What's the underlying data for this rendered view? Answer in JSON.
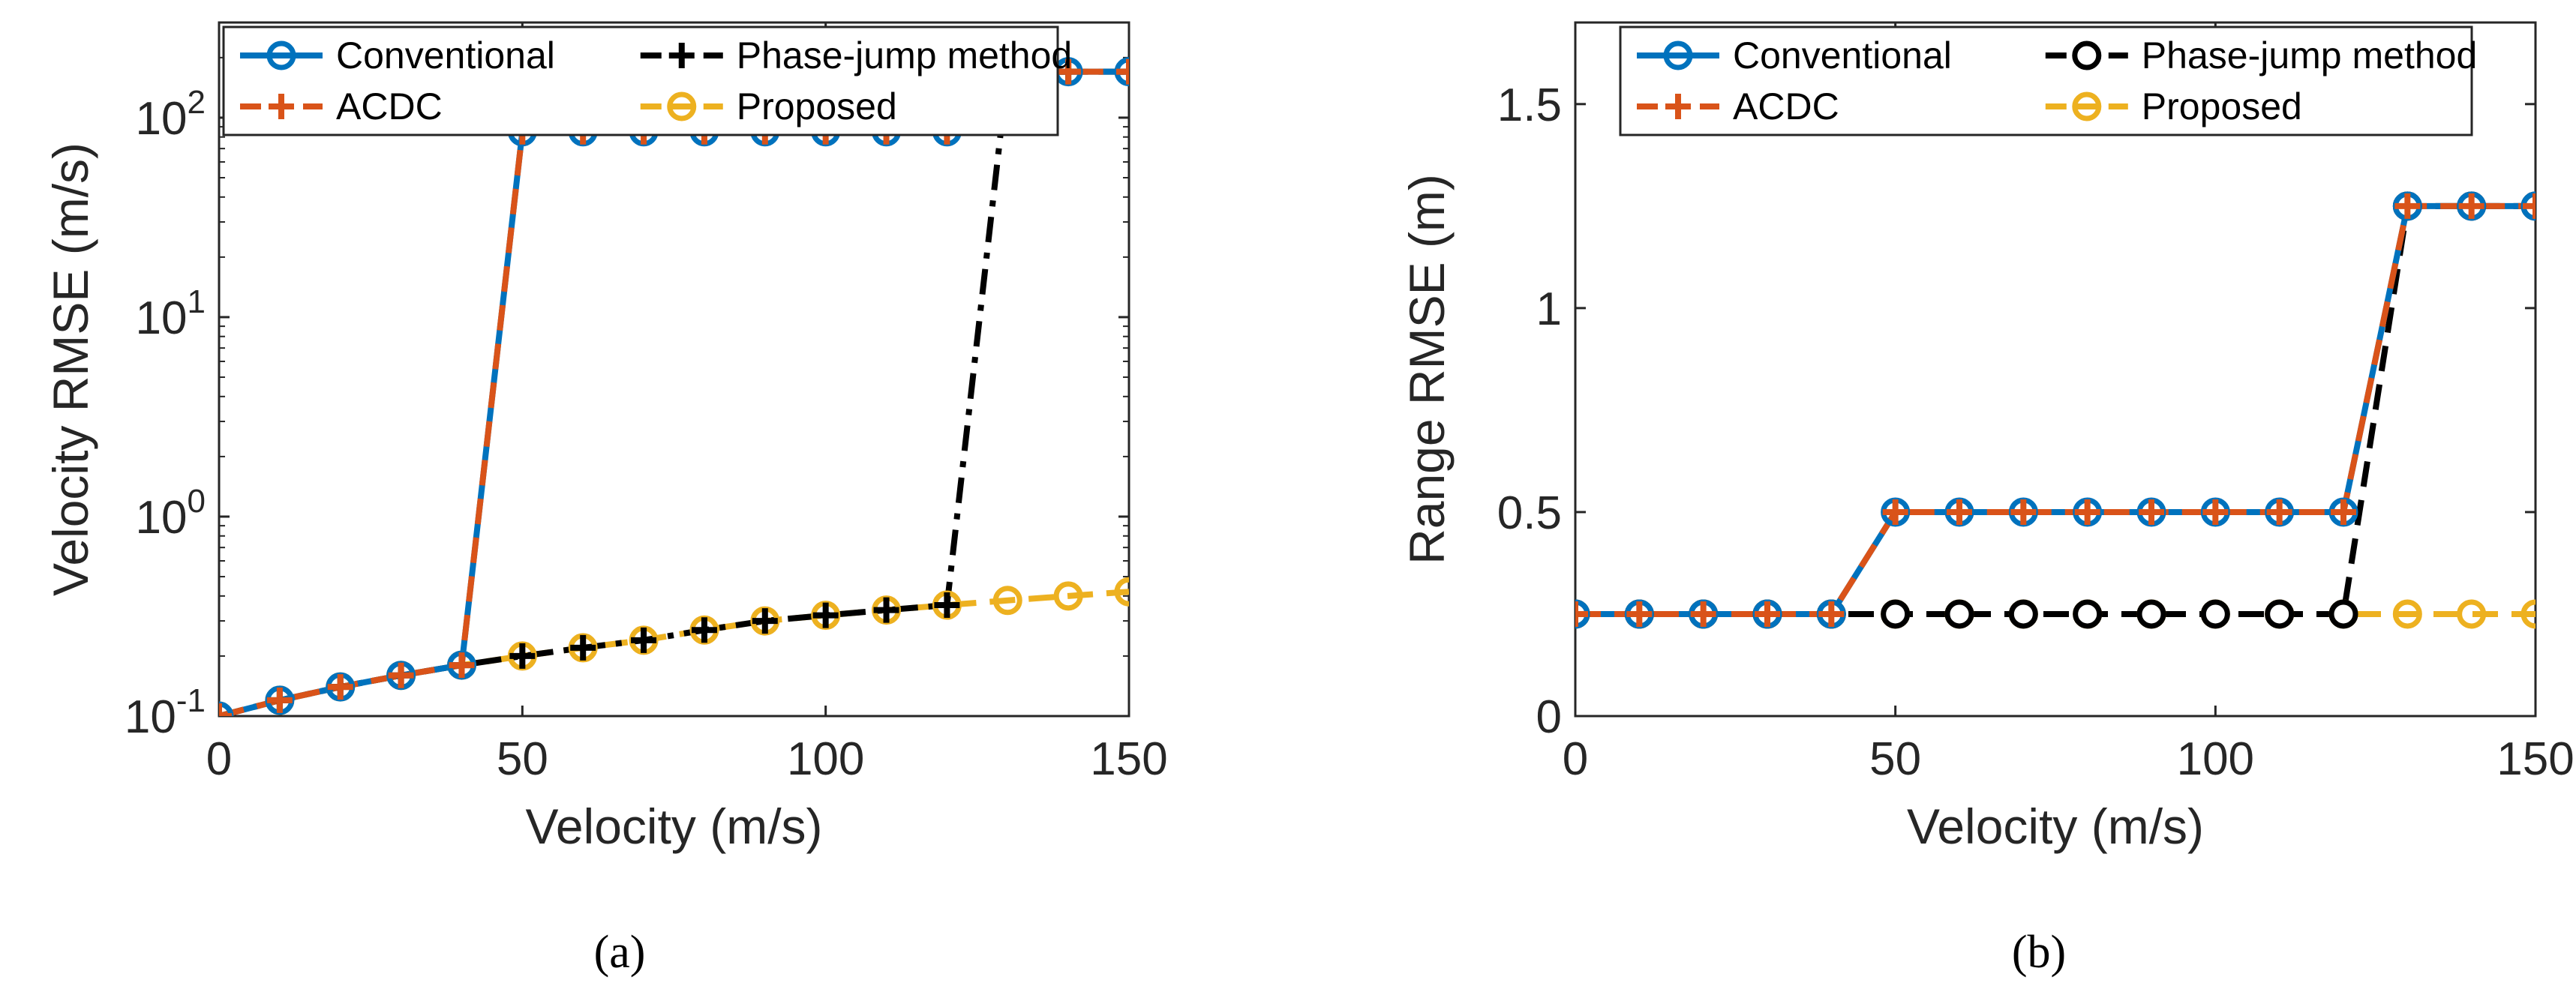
{
  "chart_data": [
    {
      "type": "line",
      "caption": "(a)",
      "xlabel": "Velocity (m/s)",
      "ylabel": "Velocity RMSE (m/s)",
      "xlim": [
        0,
        150
      ],
      "ylim": [
        0.1,
        300
      ],
      "yscale": "log",
      "xticks": [
        0,
        50,
        100,
        150
      ],
      "yticks": [
        {
          "value": 0.1,
          "base": "10",
          "exp": "-1"
        },
        {
          "value": 1,
          "base": "10",
          "exp": "0"
        },
        {
          "value": 10,
          "base": "10",
          "exp": "1"
        },
        {
          "value": 100,
          "base": "10",
          "exp": "2"
        }
      ],
      "grid": false,
      "legend_position": "top",
      "x": [
        0,
        10,
        20,
        30,
        40,
        50,
        60,
        70,
        80,
        90,
        100,
        110,
        120,
        130,
        140,
        150
      ],
      "series": [
        {
          "name": "Conventional",
          "color": "#0072BD",
          "line": "solid",
          "marker": "circle",
          "values": [
            0.1,
            0.12,
            0.14,
            0.16,
            0.18,
            85,
            85,
            85,
            85,
            85,
            85,
            85,
            85,
            170,
            170,
            170
          ]
        },
        {
          "name": "ACDC",
          "color": "#D95319",
          "line": "dashed",
          "marker": "plus",
          "values": [
            0.1,
            0.12,
            0.14,
            0.16,
            0.18,
            85,
            85,
            85,
            85,
            85,
            85,
            85,
            85,
            170,
            170,
            170
          ]
        },
        {
          "name": "Phase-jump method",
          "color": "#000000",
          "line": "dashdot",
          "marker": "plus",
          "values": [
            0.1,
            0.12,
            0.14,
            0.16,
            0.18,
            0.2,
            0.22,
            0.24,
            0.27,
            0.3,
            0.32,
            0.34,
            0.36,
            170,
            170,
            170
          ]
        },
        {
          "name": "Proposed",
          "color": "#EDB120",
          "line": "dashed",
          "marker": "circle",
          "values": [
            0.1,
            0.12,
            0.14,
            0.16,
            0.18,
            0.2,
            0.22,
            0.24,
            0.27,
            0.3,
            0.32,
            0.34,
            0.36,
            0.38,
            0.4,
            0.42
          ]
        }
      ]
    },
    {
      "type": "line",
      "caption": "(b)",
      "xlabel": "Velocity (m/s)",
      "ylabel": "Range RMSE (m)",
      "xlim": [
        0,
        150
      ],
      "ylim": [
        0,
        1.7
      ],
      "yscale": "linear",
      "xticks": [
        0,
        50,
        100,
        150
      ],
      "yticks": [
        {
          "value": 0,
          "label": "0"
        },
        {
          "value": 0.5,
          "label": "0.5"
        },
        {
          "value": 1,
          "label": "1"
        },
        {
          "value": 1.5,
          "label": "1.5"
        }
      ],
      "grid": false,
      "legend_position": "top",
      "x": [
        0,
        10,
        20,
        30,
        40,
        50,
        60,
        70,
        80,
        90,
        100,
        110,
        120,
        130,
        140,
        150
      ],
      "series": [
        {
          "name": "Conventional",
          "color": "#0072BD",
          "line": "solid",
          "marker": "circle",
          "values": [
            0.25,
            0.25,
            0.25,
            0.25,
            0.25,
            0.5,
            0.5,
            0.5,
            0.5,
            0.5,
            0.5,
            0.5,
            0.5,
            1.25,
            1.25,
            1.25
          ]
        },
        {
          "name": "ACDC",
          "color": "#D95319",
          "line": "dashed",
          "marker": "plus",
          "values": [
            0.25,
            0.25,
            0.25,
            0.25,
            0.25,
            0.5,
            0.5,
            0.5,
            0.5,
            0.5,
            0.5,
            0.5,
            0.5,
            1.25,
            1.25,
            1.25
          ]
        },
        {
          "name": "Phase-jump method",
          "color": "#000000",
          "line": "dashed",
          "marker": "circle",
          "values": [
            0.25,
            0.25,
            0.25,
            0.25,
            0.25,
            0.25,
            0.25,
            0.25,
            0.25,
            0.25,
            0.25,
            0.25,
            0.25,
            1.25,
            1.25,
            1.25
          ]
        },
        {
          "name": "Proposed",
          "color": "#EDB120",
          "line": "dashed",
          "marker": "circle",
          "values": [
            0.25,
            0.25,
            0.25,
            0.25,
            0.25,
            0.25,
            0.25,
            0.25,
            0.25,
            0.25,
            0.25,
            0.25,
            0.25,
            0.25,
            0.25,
            0.25
          ]
        }
      ]
    }
  ]
}
